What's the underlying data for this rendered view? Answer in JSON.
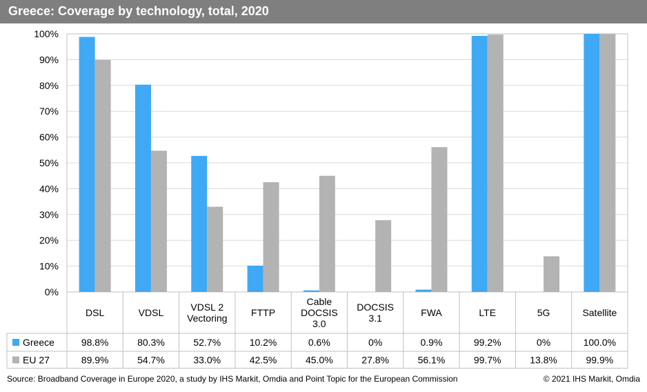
{
  "title": "Greece: Coverage by technology, total, 2020",
  "source": "Source: Broadband Coverage in Europe 2020, a study by IHS Markit, Omdia and Point Topic for the European Commission",
  "copyright": "© 2021 IHS Markit, Omdia",
  "colors": {
    "greece": "#3fa9f5",
    "eu27": "#b3b3b3",
    "title_bg": "#7f7f7f"
  },
  "chart_data": {
    "type": "bar",
    "categories": [
      [
        "DSL"
      ],
      [
        "VDSL"
      ],
      [
        "VDSL 2",
        "Vectoring"
      ],
      [
        "FTTP"
      ],
      [
        "Cable",
        "DOCSIS",
        "3.0"
      ],
      [
        "DOCSIS",
        "3.1"
      ],
      [
        "FWA"
      ],
      [
        "LTE"
      ],
      [
        "5G"
      ],
      [
        "Satellite"
      ]
    ],
    "yticks": [
      "0%",
      "10%",
      "20%",
      "30%",
      "40%",
      "50%",
      "60%",
      "70%",
      "80%",
      "90%",
      "100%"
    ],
    "ylim": [
      0,
      100
    ],
    "grid": true,
    "series": [
      {
        "name": "Greece",
        "color": "#3fa9f5",
        "values": [
          98.8,
          80.3,
          52.7,
          10.2,
          0.6,
          0,
          0.9,
          99.2,
          0,
          100.0
        ],
        "labels": [
          "98.8%",
          "80.3%",
          "52.7%",
          "10.2%",
          "0.6%",
          "0%",
          "0.9%",
          "99.2%",
          "0%",
          "100.0%"
        ]
      },
      {
        "name": "EU 27",
        "color": "#b3b3b3",
        "values": [
          89.9,
          54.7,
          33.0,
          42.5,
          45.0,
          27.8,
          56.1,
          99.7,
          13.8,
          99.9
        ],
        "labels": [
          "89.9%",
          "54.7%",
          "33.0%",
          "42.5%",
          "45.0%",
          "27.8%",
          "56.1%",
          "99.7%",
          "13.8%",
          "99.9%"
        ]
      }
    ]
  }
}
